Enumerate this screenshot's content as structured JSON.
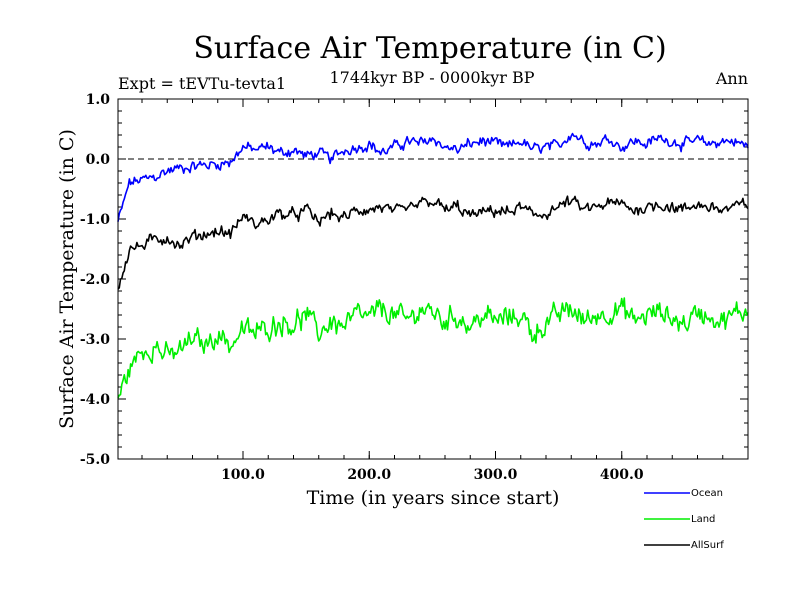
{
  "chart_data": {
    "type": "line",
    "title": "Surface Air Temperature (in C)",
    "subtitle": "1744kyr BP - 0000kyr BP",
    "expt_label": "Expt = tEVTu-tevta1",
    "season_label": "Ann",
    "xlabel": "Time (in years since start)",
    "ylabel": "Surface Air Temperature (in C)",
    "xlim": [
      1,
      500
    ],
    "ylim": [
      -5.0,
      1.0
    ],
    "xticks": [
      100,
      200,
      300,
      400
    ],
    "xtick_labels": [
      "100.0",
      "200.0",
      "300.0",
      "400.0"
    ],
    "yticks": [
      1.0,
      0.0,
      -1.0,
      -2.0,
      -3.0,
      -4.0,
      -5.0
    ],
    "ytick_labels": [
      "1.0",
      "0.0",
      "-1.0",
      "-2.0",
      "-3.0",
      "-4.0",
      "-5.0"
    ],
    "zero_line": 0.0,
    "x": [
      1,
      10,
      20,
      30,
      40,
      50,
      60,
      70,
      80,
      90,
      100,
      110,
      120,
      130,
      140,
      150,
      160,
      170,
      180,
      190,
      200,
      210,
      220,
      230,
      240,
      250,
      260,
      270,
      280,
      290,
      300,
      310,
      320,
      330,
      340,
      350,
      360,
      370,
      380,
      390,
      400,
      410,
      420,
      430,
      440,
      450,
      460,
      470,
      480,
      490,
      500
    ],
    "series": [
      {
        "name": "Ocean",
        "color": "#0000ff",
        "values": [
          -1.05,
          -0.4,
          -0.35,
          -0.3,
          -0.2,
          -0.15,
          -0.12,
          -0.1,
          -0.08,
          -0.05,
          0.2,
          0.15,
          0.2,
          0.1,
          0.15,
          0.05,
          0.1,
          0.0,
          0.15,
          0.2,
          0.25,
          0.1,
          0.2,
          0.3,
          0.25,
          0.35,
          0.2,
          0.15,
          0.25,
          0.3,
          0.25,
          0.2,
          0.3,
          0.15,
          0.2,
          0.2,
          0.45,
          0.3,
          0.25,
          0.35,
          0.2,
          0.3,
          0.25,
          0.35,
          0.3,
          0.25,
          0.3,
          0.25,
          0.3,
          0.3,
          0.2
        ]
      },
      {
        "name": "Land",
        "color": "#00ee00",
        "values": [
          -4.0,
          -3.5,
          -3.2,
          -3.1,
          -3.3,
          -3.2,
          -3.0,
          -3.1,
          -2.9,
          -3.1,
          -2.85,
          -2.9,
          -2.8,
          -2.7,
          -2.75,
          -2.6,
          -2.9,
          -2.7,
          -2.8,
          -2.6,
          -2.65,
          -2.5,
          -2.6,
          -2.7,
          -2.5,
          -2.55,
          -2.7,
          -2.6,
          -2.8,
          -2.6,
          -2.7,
          -2.65,
          -2.6,
          -2.9,
          -2.75,
          -2.6,
          -2.5,
          -2.7,
          -2.6,
          -2.55,
          -2.5,
          -2.7,
          -2.6,
          -2.55,
          -2.65,
          -2.75,
          -2.55,
          -2.6,
          -2.7,
          -2.6,
          -2.5
        ]
      },
      {
        "name": "AllSurf",
        "color": "#000000",
        "values": [
          -2.15,
          -1.5,
          -1.45,
          -1.35,
          -1.3,
          -1.45,
          -1.3,
          -1.25,
          -1.2,
          -1.25,
          -0.95,
          -1.1,
          -1.0,
          -0.9,
          -0.95,
          -0.85,
          -1.05,
          -0.9,
          -1.0,
          -0.85,
          -0.85,
          -0.8,
          -0.9,
          -0.85,
          -0.75,
          -0.7,
          -0.85,
          -0.8,
          -0.95,
          -0.9,
          -0.85,
          -0.9,
          -0.8,
          -0.95,
          -0.9,
          -0.8,
          -0.7,
          -0.85,
          -0.8,
          -0.75,
          -0.75,
          -0.85,
          -0.8,
          -0.75,
          -0.8,
          -0.85,
          -0.75,
          -0.8,
          -0.85,
          -0.8,
          -0.75
        ]
      }
    ]
  }
}
